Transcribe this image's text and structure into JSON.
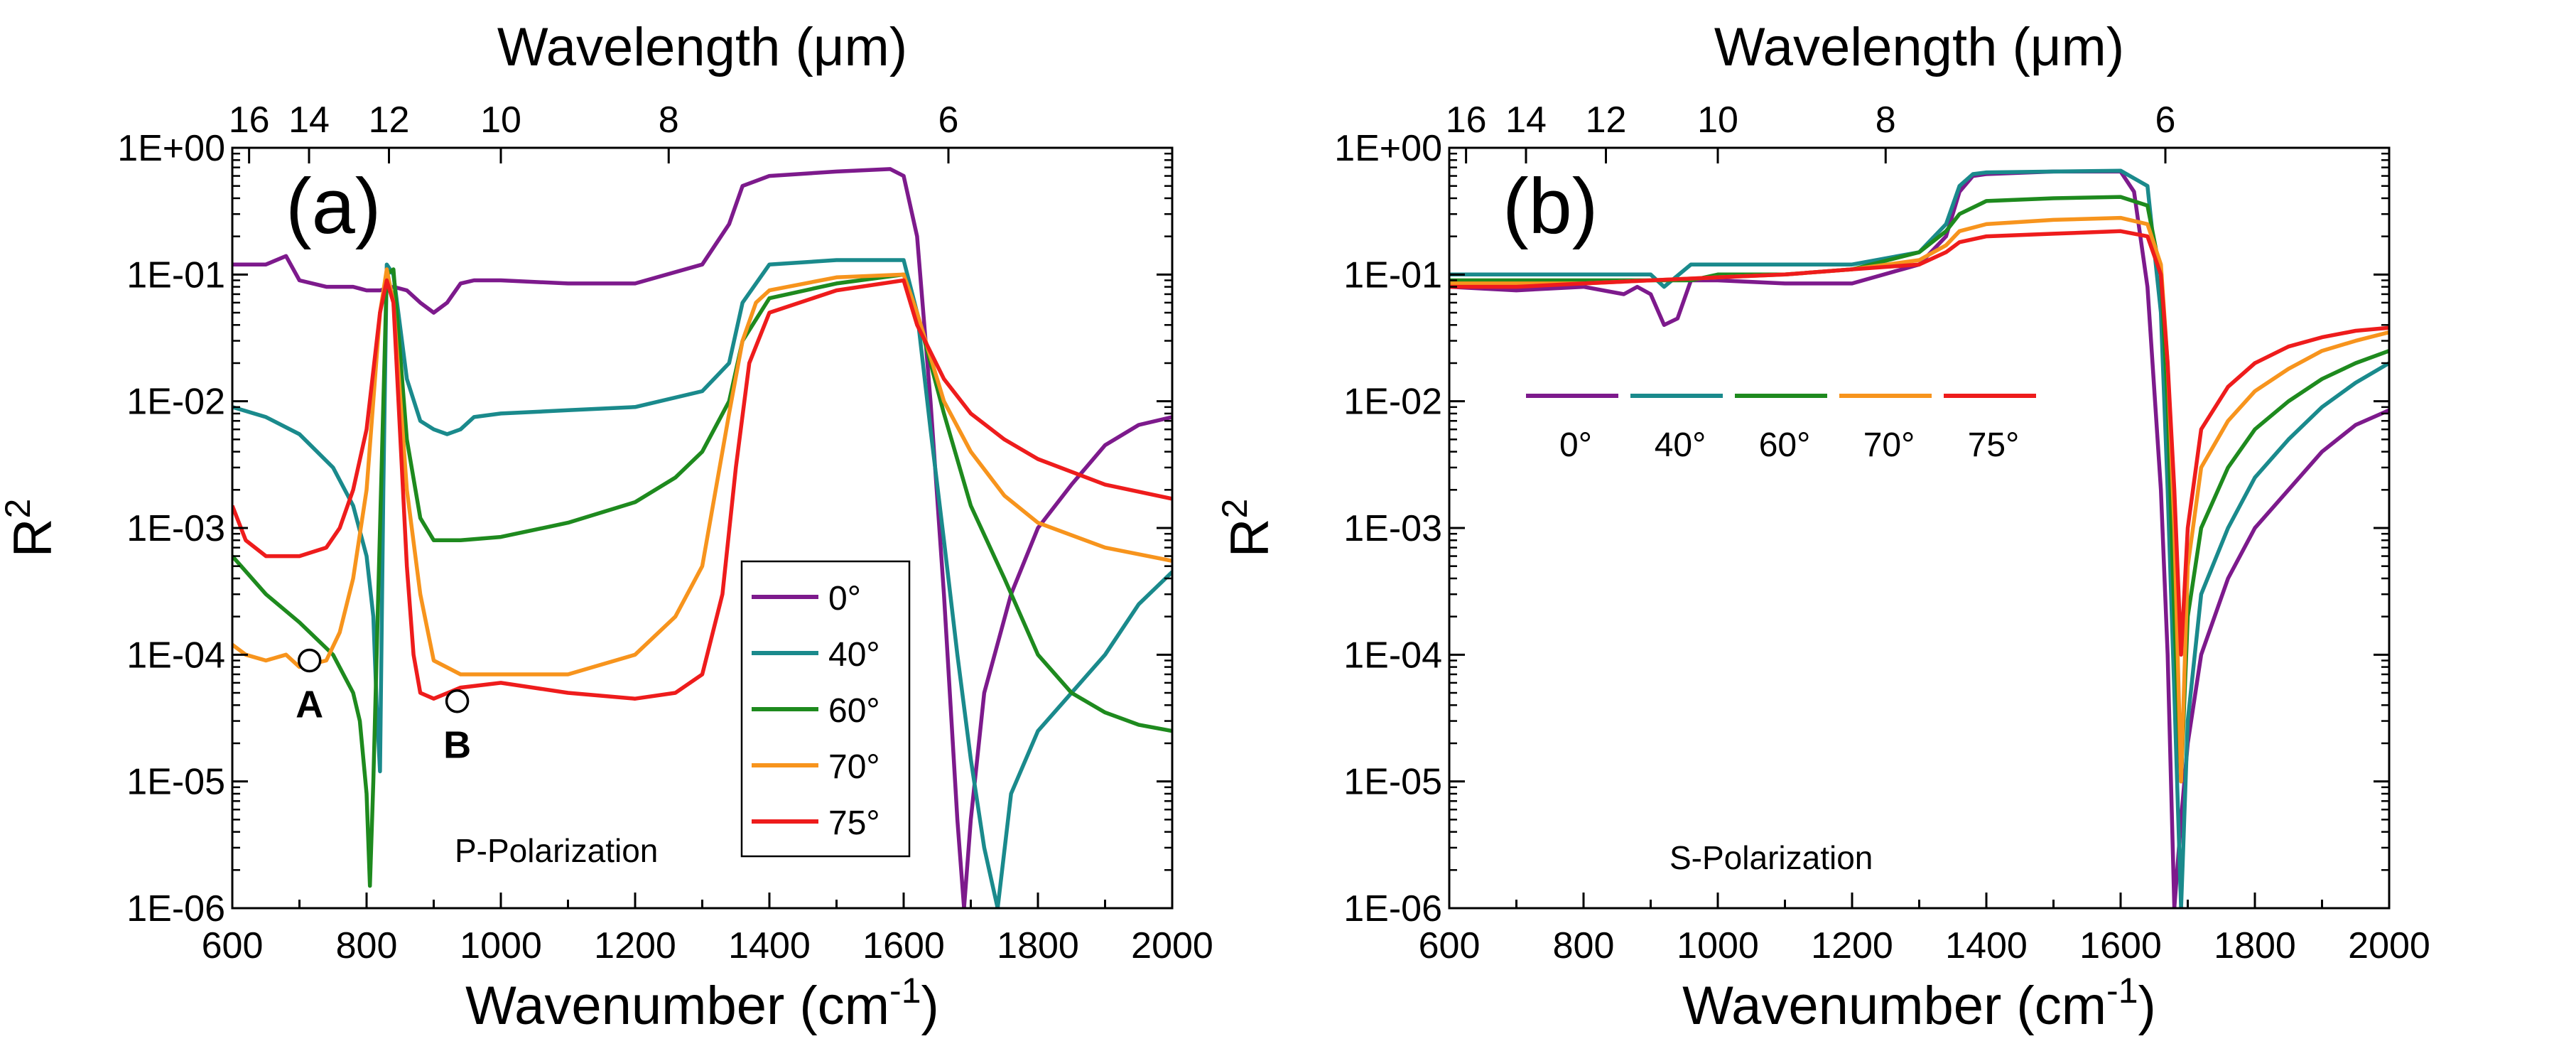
{
  "figure": {
    "series_names": [
      "0°",
      "40°",
      "60°",
      "70°",
      "75°"
    ],
    "series_colors": [
      "#7d1a8c",
      "#1a8a8c",
      "#1e8a1e",
      "#f7941d",
      "#ee1c1c"
    ]
  },
  "chart_data": [
    {
      "type": "line",
      "panel_label": "(a)",
      "annotation": "P-Polarization",
      "xlabel": "Wavenumber (cm",
      "xlabel_sup": "-1",
      "xlabel_end": ")",
      "ylabel": "R",
      "ylabel_sup": "2",
      "top_label": "Wavelength (μm)",
      "y_scale": "log",
      "xlim": [
        600,
        2000
      ],
      "ylim": [
        1e-06,
        1
      ],
      "x_ticks": [
        600,
        800,
        1000,
        1200,
        1400,
        1600,
        1800,
        2000
      ],
      "x_tick_labels": [
        "600",
        "800",
        "1000",
        "1200",
        "1400",
        "1600",
        "1800",
        "2000"
      ],
      "y_ticks": [
        1e-06,
        1e-05,
        0.0001,
        0.001,
        0.01,
        0.1,
        1
      ],
      "y_tick_labels": [
        "1E-06",
        "1E-05",
        "1E-04",
        "1E-03",
        "1E-02",
        "1E-01",
        "1E+00"
      ],
      "top_ticks_um": [
        16,
        14,
        12,
        10,
        8,
        6
      ],
      "top_tick_labels": [
        "16",
        "14",
        "12",
        "10",
        "8",
        "6"
      ],
      "legend_position": "center-right",
      "markers": [
        {
          "label": "A",
          "x": 715,
          "y": 9e-05
        },
        {
          "label": "B",
          "x": 935,
          "y": 4.3e-05
        }
      ],
      "series": [
        {
          "name": "0°",
          "color": "#7d1a8c",
          "x": [
            600,
            650,
            680,
            700,
            740,
            780,
            800,
            820,
            840,
            860,
            880,
            900,
            920,
            940,
            960,
            1000,
            1100,
            1200,
            1300,
            1340,
            1360,
            1400,
            1500,
            1580,
            1600,
            1620,
            1640,
            1660,
            1680,
            1690,
            1700,
            1720,
            1760,
            1800,
            1850,
            1900,
            1950,
            2000
          ],
          "y": [
            0.12,
            0.12,
            0.14,
            0.09,
            0.08,
            0.08,
            0.075,
            0.075,
            0.08,
            0.075,
            0.06,
            0.05,
            0.06,
            0.085,
            0.09,
            0.09,
            0.085,
            0.085,
            0.12,
            0.25,
            0.5,
            0.6,
            0.65,
            0.68,
            0.6,
            0.2,
            0.01,
            0.0003,
            5e-06,
            1e-06,
            5e-06,
            5e-05,
            0.0003,
            0.001,
            0.0022,
            0.0045,
            0.0065,
            0.0075
          ]
        },
        {
          "name": "40°",
          "color": "#1a8a8c",
          "x": [
            600,
            650,
            700,
            750,
            780,
            800,
            810,
            815,
            820,
            825,
            830,
            840,
            860,
            880,
            900,
            920,
            940,
            960,
            1000,
            1100,
            1200,
            1300,
            1340,
            1360,
            1400,
            1500,
            1600,
            1620,
            1640,
            1660,
            1680,
            1700,
            1720,
            1740,
            1760,
            1800,
            1850,
            1900,
            1950,
            2000
          ],
          "y": [
            0.009,
            0.0075,
            0.0055,
            0.003,
            0.0015,
            0.0006,
            0.0002,
            4e-05,
            1.2e-05,
            0.002,
            0.12,
            0.1,
            0.015,
            0.007,
            0.006,
            0.0055,
            0.006,
            0.0075,
            0.008,
            0.0085,
            0.009,
            0.012,
            0.02,
            0.06,
            0.12,
            0.13,
            0.13,
            0.05,
            0.006,
            0.0008,
            0.0001,
            1.5e-05,
            3e-06,
            1e-06,
            8e-06,
            2.5e-05,
            5e-05,
            0.0001,
            0.00025,
            0.00045
          ]
        },
        {
          "name": "60°",
          "color": "#1e8a1e",
          "x": [
            600,
            650,
            700,
            750,
            780,
            790,
            800,
            805,
            810,
            820,
            830,
            840,
            860,
            880,
            900,
            940,
            1000,
            1100,
            1200,
            1260,
            1300,
            1340,
            1360,
            1400,
            1500,
            1600,
            1620,
            1640,
            1660,
            1700,
            1750,
            1800,
            1850,
            1900,
            1950,
            2000
          ],
          "y": [
            0.0006,
            0.0003,
            0.00018,
            0.0001,
            5e-05,
            3e-05,
            8e-06,
            1.5e-06,
            1e-05,
            0.001,
            0.1,
            0.11,
            0.005,
            0.0012,
            0.0008,
            0.0008,
            0.00085,
            0.0011,
            0.0016,
            0.0025,
            0.004,
            0.01,
            0.03,
            0.065,
            0.085,
            0.1,
            0.05,
            0.02,
            0.008,
            0.0015,
            0.0004,
            0.0001,
            5e-05,
            3.5e-05,
            2.8e-05,
            2.5e-05
          ]
        },
        {
          "name": "70°",
          "color": "#f7941d",
          "x": [
            600,
            620,
            650,
            680,
            700,
            740,
            760,
            780,
            800,
            820,
            830,
            840,
            860,
            880,
            900,
            940,
            1000,
            1100,
            1200,
            1260,
            1300,
            1320,
            1340,
            1360,
            1380,
            1400,
            1500,
            1600,
            1620,
            1660,
            1700,
            1750,
            1800,
            1900,
            2000
          ],
          "y": [
            0.00012,
            0.0001,
            9e-05,
            0.0001,
            8e-05,
            9e-05,
            0.00015,
            0.0004,
            0.002,
            0.05,
            0.11,
            0.06,
            0.002,
            0.0003,
            9e-05,
            7e-05,
            7e-05,
            7e-05,
            0.0001,
            0.0002,
            0.0005,
            0.002,
            0.008,
            0.03,
            0.06,
            0.075,
            0.095,
            0.1,
            0.05,
            0.01,
            0.004,
            0.0018,
            0.0011,
            0.0007,
            0.00055
          ]
        },
        {
          "name": "75°",
          "color": "#ee1c1c",
          "x": [
            600,
            620,
            650,
            680,
            700,
            740,
            760,
            780,
            800,
            820,
            830,
            840,
            860,
            870,
            880,
            900,
            940,
            1000,
            1100,
            1200,
            1260,
            1300,
            1330,
            1350,
            1370,
            1400,
            1500,
            1600,
            1620,
            1660,
            1700,
            1750,
            1800,
            1900,
            2000
          ],
          "y": [
            0.0015,
            0.0008,
            0.0006,
            0.0006,
            0.0006,
            0.0007,
            0.001,
            0.002,
            0.006,
            0.05,
            0.09,
            0.06,
            0.0005,
            0.0001,
            5e-05,
            4.5e-05,
            5.5e-05,
            6e-05,
            5e-05,
            4.5e-05,
            5e-05,
            7e-05,
            0.0003,
            0.003,
            0.02,
            0.05,
            0.075,
            0.09,
            0.04,
            0.015,
            0.008,
            0.005,
            0.0035,
            0.0022,
            0.0017
          ]
        }
      ]
    },
    {
      "type": "line",
      "panel_label": "(b)",
      "annotation": "S-Polarization",
      "xlabel": "Wavenumber (cm",
      "xlabel_sup": "-1",
      "xlabel_end": ")",
      "ylabel": "R",
      "ylabel_sup": "2",
      "top_label": "Wavelength (μm)",
      "y_scale": "log",
      "xlim": [
        600,
        2000
      ],
      "ylim": [
        1e-06,
        1
      ],
      "x_ticks": [
        600,
        800,
        1000,
        1200,
        1400,
        1600,
        1800,
        2000
      ],
      "x_tick_labels": [
        "600",
        "800",
        "1000",
        "1200",
        "1400",
        "1600",
        "1800",
        "2000"
      ],
      "y_ticks": [
        1e-06,
        1e-05,
        0.0001,
        0.001,
        0.01,
        0.1,
        1
      ],
      "y_tick_labels": [
        "1E-06",
        "1E-05",
        "1E-04",
        "1E-03",
        "1E-02",
        "1E-01",
        "1E+00"
      ],
      "top_ticks_um": [
        16,
        14,
        12,
        10,
        8,
        6
      ],
      "top_tick_labels": [
        "16",
        "14",
        "12",
        "10",
        "8",
        "6"
      ],
      "legend_position": "upper-left horizontal",
      "series": [
        {
          "name": "0°",
          "color": "#7d1a8c",
          "x": [
            600,
            700,
            800,
            860,
            880,
            900,
            920,
            940,
            960,
            1000,
            1100,
            1200,
            1300,
            1340,
            1360,
            1380,
            1400,
            1500,
            1600,
            1620,
            1640,
            1660,
            1670,
            1680,
            1690,
            1700,
            1720,
            1760,
            1800,
            1850,
            1900,
            1950,
            2000
          ],
          "y": [
            0.08,
            0.075,
            0.08,
            0.07,
            0.08,
            0.07,
            0.04,
            0.045,
            0.09,
            0.09,
            0.085,
            0.085,
            0.12,
            0.2,
            0.45,
            0.6,
            0.62,
            0.65,
            0.65,
            0.45,
            0.08,
            0.002,
            0.0001,
            1e-06,
            5e-06,
            2e-05,
            0.0001,
            0.0004,
            0.001,
            0.002,
            0.004,
            0.0065,
            0.0085
          ]
        },
        {
          "name": "40°",
          "color": "#1a8a8c",
          "x": [
            600,
            700,
            800,
            900,
            920,
            960,
            1000,
            1100,
            1200,
            1300,
            1340,
            1360,
            1380,
            1400,
            1500,
            1600,
            1640,
            1660,
            1670,
            1680,
            1690,
            1700,
            1720,
            1760,
            1800,
            1850,
            1900,
            1950,
            2000
          ],
          "y": [
            0.1,
            0.1,
            0.1,
            0.1,
            0.08,
            0.12,
            0.12,
            0.12,
            0.12,
            0.15,
            0.25,
            0.5,
            0.62,
            0.64,
            0.65,
            0.66,
            0.5,
            0.05,
            0.002,
            5e-05,
            1e-06,
            3e-05,
            0.0003,
            0.001,
            0.0025,
            0.005,
            0.009,
            0.014,
            0.02
          ]
        },
        {
          "name": "60°",
          "color": "#1e8a1e",
          "x": [
            600,
            700,
            800,
            900,
            960,
            1000,
            1100,
            1200,
            1300,
            1340,
            1360,
            1400,
            1500,
            1600,
            1640,
            1660,
            1670,
            1680,
            1690,
            1700,
            1720,
            1760,
            1800,
            1850,
            1900,
            1950,
            2000
          ],
          "y": [
            0.09,
            0.09,
            0.09,
            0.09,
            0.09,
            0.1,
            0.1,
            0.11,
            0.15,
            0.22,
            0.3,
            0.38,
            0.4,
            0.41,
            0.35,
            0.1,
            0.01,
            0.0002,
            1e-05,
            0.0002,
            0.001,
            0.003,
            0.006,
            0.01,
            0.015,
            0.02,
            0.025
          ]
        },
        {
          "name": "70°",
          "color": "#f7941d",
          "x": [
            600,
            700,
            800,
            900,
            1000,
            1100,
            1200,
            1300,
            1340,
            1360,
            1400,
            1500,
            1600,
            1640,
            1660,
            1670,
            1680,
            1690,
            1700,
            1720,
            1760,
            1800,
            1850,
            1900,
            1950,
            2000
          ],
          "y": [
            0.085,
            0.085,
            0.085,
            0.09,
            0.095,
            0.1,
            0.11,
            0.13,
            0.17,
            0.22,
            0.25,
            0.27,
            0.28,
            0.25,
            0.12,
            0.02,
            0.001,
            1e-05,
            0.0005,
            0.003,
            0.007,
            0.012,
            0.018,
            0.025,
            0.03,
            0.035
          ]
        },
        {
          "name": "75°",
          "color": "#ee1c1c",
          "x": [
            600,
            700,
            800,
            900,
            1000,
            1100,
            1200,
            1300,
            1340,
            1360,
            1400,
            1500,
            1600,
            1640,
            1660,
            1670,
            1680,
            1690,
            1700,
            1720,
            1760,
            1800,
            1850,
            1900,
            1950,
            2000
          ],
          "y": [
            0.08,
            0.08,
            0.085,
            0.09,
            0.095,
            0.1,
            0.11,
            0.12,
            0.15,
            0.18,
            0.2,
            0.21,
            0.22,
            0.2,
            0.1,
            0.02,
            0.002,
            0.0001,
            0.001,
            0.006,
            0.013,
            0.02,
            0.027,
            0.032,
            0.036,
            0.038
          ]
        }
      ]
    }
  ]
}
